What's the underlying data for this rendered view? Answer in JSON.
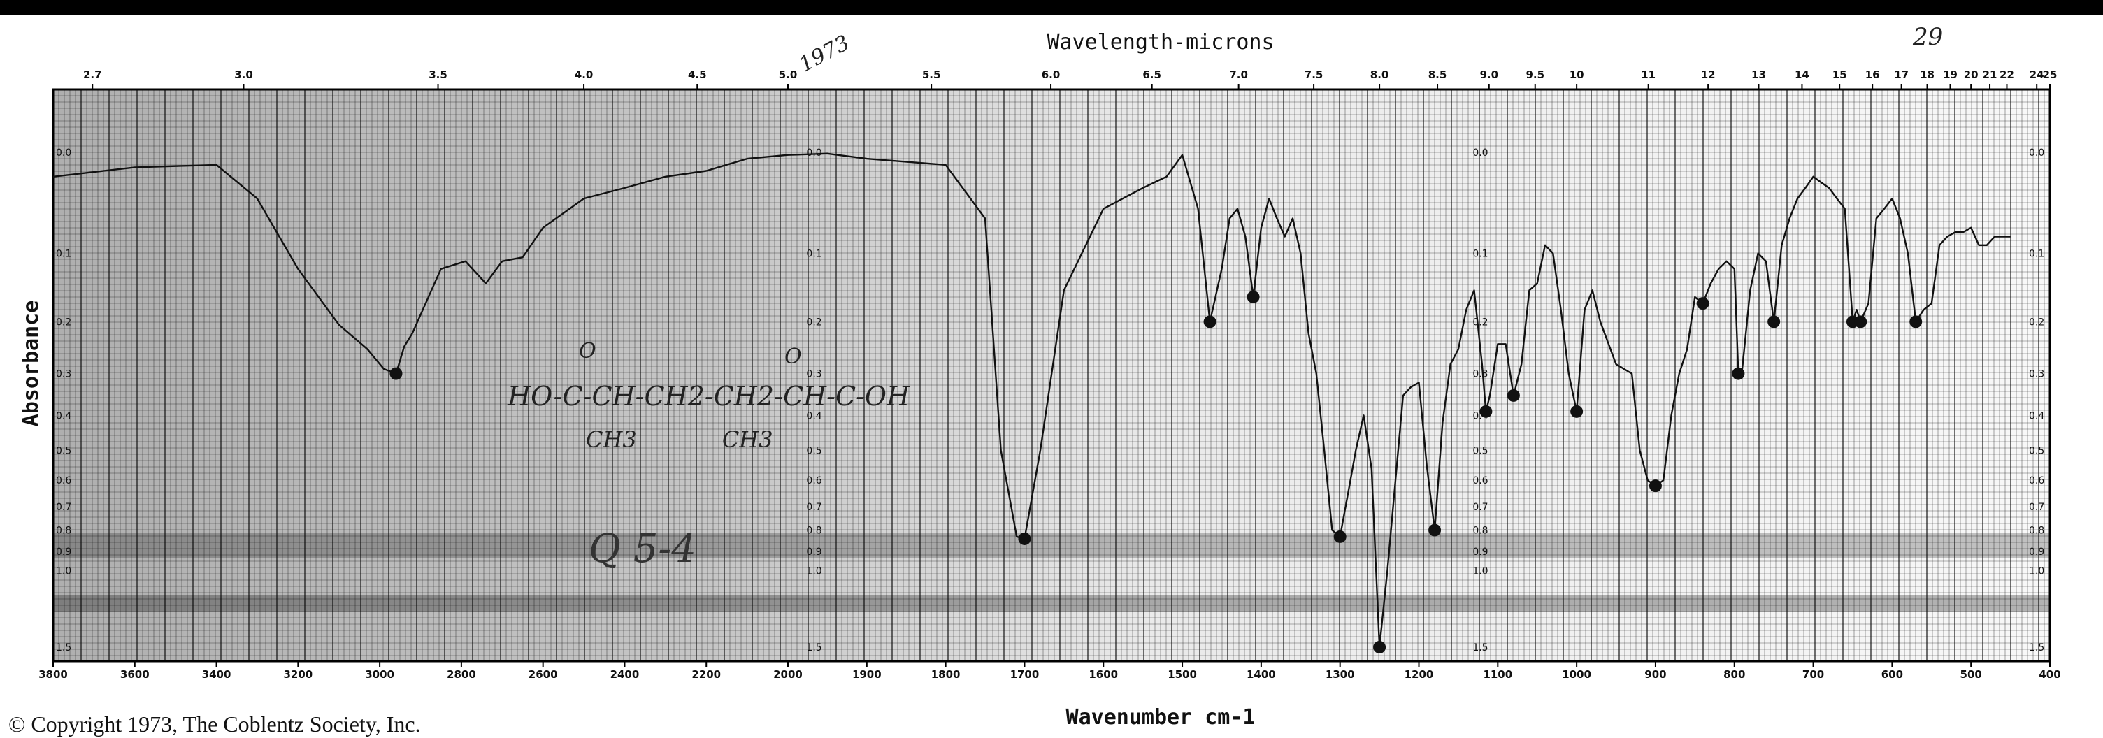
{
  "chart_data": {
    "type": "line",
    "title": "",
    "x_top_label": "Wavelength-microns",
    "xlabel": "Wavenumber cm-1",
    "ylabel": "Absorbance",
    "grid": true,
    "x_top_ticks": [
      "2.7",
      "3.0",
      "3.5",
      "4.0",
      "4.5",
      "5.0",
      "5.5",
      "6.0",
      "6.5",
      "7.0",
      "7.5",
      "8.0",
      "8.5",
      "9.0",
      "9.5",
      "10",
      "11",
      "12",
      "13",
      "14",
      "15",
      "16",
      "17",
      "18",
      "19",
      "20",
      "21",
      "22",
      "24",
      "25"
    ],
    "x_bottom_ticks": [
      "3800",
      "3600",
      "3400",
      "3200",
      "3000",
      "2800",
      "2600",
      "2400",
      "2200",
      "2000",
      "1900",
      "1800",
      "1700",
      "1600",
      "1500",
      "1400",
      "1300",
      "1200",
      "1100",
      "1000",
      "900",
      "800",
      "700",
      "600",
      "500",
      "400"
    ],
    "y_ticks": [
      "0.0",
      "0.1",
      "0.2",
      "0.3",
      "0.4",
      "0.5",
      "0.6",
      "0.7",
      "0.8",
      "0.9",
      "1.0",
      "1.5"
    ],
    "series": [
      {
        "x": [
          3800,
          3600,
          3400,
          3300,
          3200,
          3100,
          3030,
          2990,
          2960,
          2940,
          2920,
          2850,
          2790,
          2740,
          2700,
          2650,
          2600,
          2500,
          2400,
          2300,
          2200,
          2100,
          2000,
          1950,
          1900,
          1800,
          1750,
          1730,
          1710,
          1700,
          1680,
          1650,
          1600,
          1550,
          1520,
          1500,
          1480,
          1465,
          1450,
          1440,
          1430,
          1420,
          1410,
          1400,
          1390,
          1380,
          1370,
          1360,
          1350,
          1340,
          1330,
          1320,
          1310,
          1300,
          1290,
          1280,
          1270,
          1260,
          1250,
          1240,
          1220,
          1210,
          1200,
          1190,
          1180,
          1170,
          1160,
          1150,
          1140,
          1130,
          1120,
          1115,
          1110,
          1100,
          1090,
          1080,
          1070,
          1060,
          1050,
          1040,
          1030,
          1020,
          1010,
          1000,
          990,
          980,
          970,
          950,
          930,
          920,
          910,
          900,
          890,
          880,
          870,
          860,
          850,
          840,
          830,
          820,
          810,
          800,
          795,
          790,
          780,
          770,
          760,
          750,
          740,
          730,
          720,
          710,
          700,
          690,
          680,
          670,
          660,
          650,
          645,
          640,
          630,
          620,
          610,
          600,
          590,
          580,
          570,
          560,
          550,
          540,
          530,
          520,
          510,
          500,
          490,
          480,
          470,
          460,
          450
        ],
        "y": [
          0.02,
          0.012,
          0.01,
          0.04,
          0.12,
          0.205,
          0.25,
          0.29,
          0.3,
          0.245,
          0.22,
          0.12,
          0.11,
          0.14,
          0.11,
          0.105,
          0.07,
          0.04,
          0.03,
          0.02,
          0.015,
          0.005,
          0.002,
          0.001,
          0.005,
          0.01,
          0.06,
          0.5,
          0.83,
          0.84,
          0.5,
          0.15,
          0.05,
          0.03,
          0.02,
          0.002,
          0.05,
          0.2,
          0.12,
          0.06,
          0.05,
          0.08,
          0.16,
          0.07,
          0.04,
          0.06,
          0.08,
          0.06,
          0.1,
          0.22,
          0.3,
          0.5,
          0.8,
          0.83,
          0.65,
          0.5,
          0.4,
          0.56,
          1.5,
          1.0,
          0.35,
          0.33,
          0.32,
          0.55,
          0.8,
          0.42,
          0.28,
          0.25,
          0.18,
          0.15,
          0.28,
          0.39,
          0.35,
          0.24,
          0.24,
          0.35,
          0.28,
          0.15,
          0.14,
          0.09,
          0.1,
          0.18,
          0.3,
          0.39,
          0.18,
          0.15,
          0.2,
          0.28,
          0.3,
          0.5,
          0.6,
          0.62,
          0.6,
          0.4,
          0.3,
          0.25,
          0.16,
          0.17,
          0.14,
          0.12,
          0.11,
          0.12,
          0.3,
          0.29,
          0.15,
          0.1,
          0.11,
          0.2,
          0.09,
          0.06,
          0.04,
          0.03,
          0.02,
          0.025,
          0.03,
          0.04,
          0.05,
          0.2,
          0.18,
          0.2,
          0.17,
          0.06,
          0.05,
          0.04,
          0.06,
          0.1,
          0.2,
          0.18,
          0.17,
          0.09,
          0.08,
          0.075,
          0.075,
          0.07,
          0.09,
          0.09,
          0.08,
          0.08,
          0.08
        ]
      }
    ]
  },
  "annotations": {
    "formula_line1": "HO-C-CH-CH2-CH2-CH-C-OH",
    "formula_line2": "CH3            CH3",
    "formula_o1": "O",
    "formula_o2": "O",
    "scribble_code": "Q 5-4",
    "top_note_left": "1973",
    "top_note_right": "29"
  },
  "copyright": "© Copyright 1973, The Coblentz Society, Inc."
}
